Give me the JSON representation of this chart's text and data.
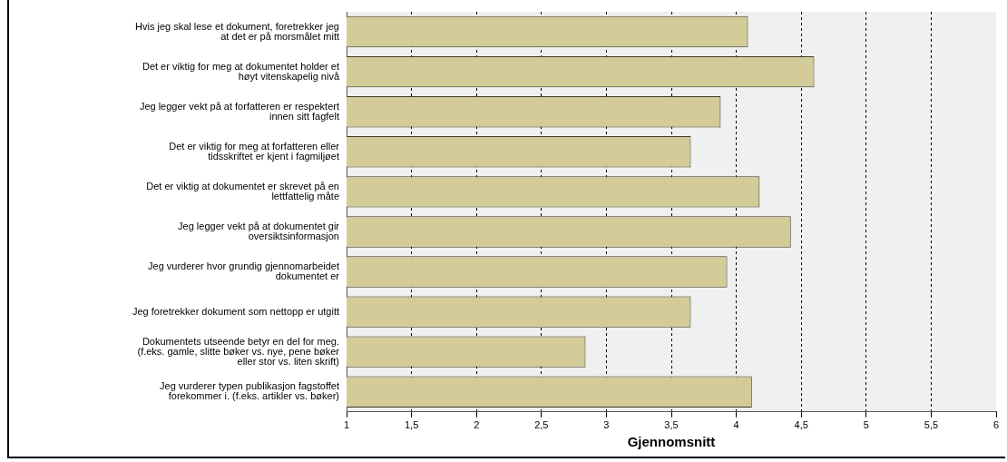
{
  "chart_data": {
    "type": "bar",
    "orientation": "horizontal",
    "xlabel": "Gjennomsnitt",
    "categories": [
      "Hvis jeg skal lese et dokument, foretrekker jeg\nat det er på morsmålet mitt",
      "Det er viktig for meg at dokumentet holder et\nhøyt vitenskapelig nivå",
      "Jeg legger vekt på at forfatteren er respektert\ninnen sitt fagfelt",
      "Det er viktig for meg at forfatteren eller\ntidsskriftet er kjent i fagmiljøet",
      "Det er viktig at dokumentet er skrevet på en\nlettfattelig måte",
      "Jeg legger vekt på at dokumentet gir\noversiktsinformasjon",
      "Jeg vurderer hvor grundig gjennomarbeidet\ndokumentet er",
      "Jeg foretrekker dokument som nettopp er utgitt",
      "Dokumentets utseende betyr en del for meg.\n(f.eks. gamle, slitte bøker vs. nye, pene bøker\neller stor vs. liten skrift)",
      "Jeg vurderer typen publikasjon fagstoffet\nforekommer i. (f.eks. artikler vs. bøker)"
    ],
    "values": [
      4.09,
      4.6,
      3.88,
      3.65,
      4.18,
      4.42,
      3.93,
      3.65,
      2.84,
      4.12
    ],
    "color": "#d3cb98",
    "xlim": [
      1,
      6
    ],
    "xticks": [
      1,
      {
        "value": 1.5,
        "label": "1,5"
      },
      2,
      {
        "value": 2.5,
        "label": "2,5"
      },
      3,
      {
        "value": 3.5,
        "label": "3,5"
      },
      4,
      {
        "value": 4.5,
        "label": "4,5"
      },
      5,
      {
        "value": 5.5,
        "label": "5,5"
      },
      6
    ],
    "grid": "x",
    "legend": false
  }
}
